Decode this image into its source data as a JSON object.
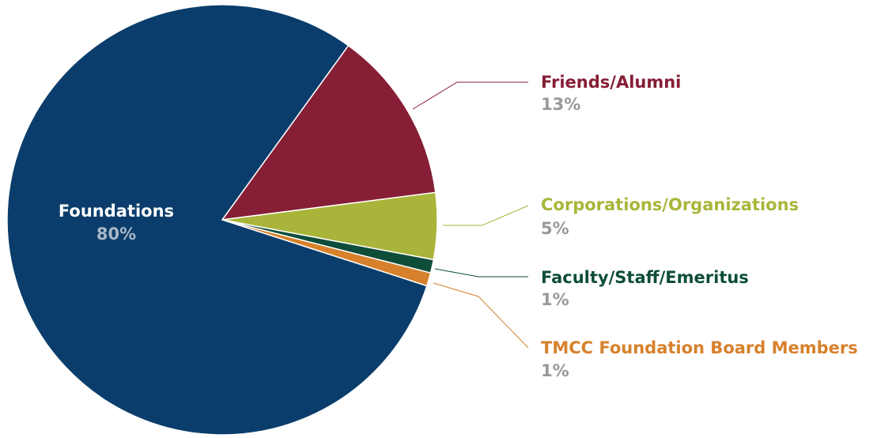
{
  "chart_data": {
    "type": "pie",
    "categories": [
      "Friends/Alumni",
      "Corporations/Organizations",
      "Faculty/Staff/Emeritus",
      "TMCC Foundation Board Members",
      "Foundations"
    ],
    "values": [
      13,
      5,
      1,
      1,
      80
    ],
    "value_labels": [
      "13%",
      "5%",
      "1%",
      "1%",
      "80%"
    ],
    "colors": [
      "#861e35",
      "#a9b53a",
      "#0e4d3a",
      "#d7812c",
      "#0a3d6b"
    ]
  }
}
